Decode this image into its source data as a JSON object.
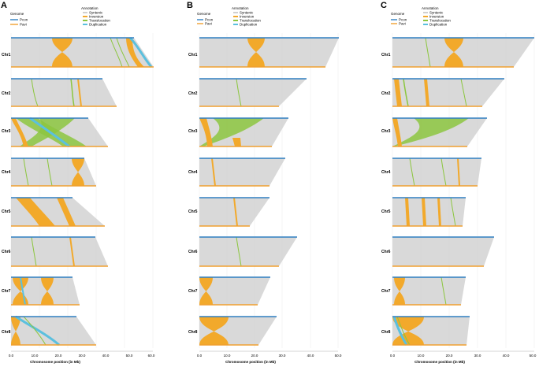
{
  "figure": {
    "panels": [
      {
        "label": "A",
        "legend": {
          "genome_title": "Genome",
          "genome": [
            "Pcon",
            "Pavi"
          ],
          "annotation_title": "Annotation",
          "annotation": [
            "Syntenic",
            "Inversion",
            "Translocation",
            "Duplication"
          ]
        },
        "x_ticks": [
          "0.0",
          "10.0",
          "20.0",
          "30.0",
          "40.0",
          "50.0",
          "60.0"
        ],
        "x_label": "Chromosome position (in Mb)"
      },
      {
        "label": "B",
        "legend": {
          "genome_title": "Genome",
          "genome": [
            "Pcon",
            "Pavi"
          ],
          "annotation_title": "Annotation",
          "annotation": [
            "Syntenic",
            "Inversion",
            "Translocation",
            "Duplication"
          ]
        },
        "x_ticks": [
          "0.0",
          "10.0",
          "20.0",
          "30.0",
          "40.0",
          "50.0"
        ],
        "x_label": "Chromosome position (in Mb)"
      },
      {
        "label": "C",
        "legend": {
          "genome_title": "Genome",
          "genome": [
            "Pcon",
            "Pavi"
          ],
          "annotation_title": "Annotation",
          "annotation": [
            "Syntenic",
            "Inversion",
            "Translocation",
            "Duplication"
          ]
        },
        "x_ticks": [
          "0.0",
          "10.0",
          "20.0",
          "30.0",
          "40.0",
          "50.0"
        ],
        "x_label": "Chromosome position (in Mb)"
      }
    ],
    "chromosomes": [
      "Chr1",
      "Chr2",
      "Chr3",
      "Chr4",
      "Chr5",
      "Chr6",
      "Chr7",
      "Chr8"
    ],
    "colors": {
      "pcon": "#2f7fc1",
      "pavi": "#f0a030",
      "syntenic": "#d0d0d0",
      "inversion": "#f2a92b",
      "translocation": "#8cc63f",
      "duplication": "#5bc0de"
    }
  }
}
